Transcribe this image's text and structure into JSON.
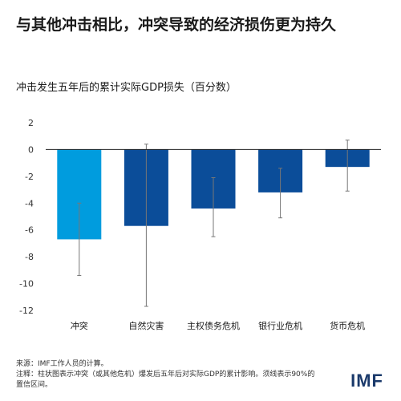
{
  "header": {
    "title": "与其他冲击相比，冲突导致的经济损伤更为持久",
    "subtitle": "冲击发生五年后的累计实际GDP损失（百分数）"
  },
  "footer": {
    "source": "来源：IMF工作人员的计算。",
    "note_line1": "注释：柱状图表示冲突（或其他危机）爆发后五年后对实际GDP的累计影响。须线表示90%的",
    "note_line2": "置信区间。",
    "logo": "IMF"
  },
  "colors": {
    "highlight_bar": "#009cde",
    "bar": "#0b4d99",
    "whisker": "#777777",
    "zero_line": "#222222",
    "grid": "#d9d9d9"
  },
  "chart_data": {
    "type": "bar",
    "title": "与其他冲击相比，冲突导致的经济损伤更为持久",
    "subtitle": "冲击发生五年后的累计实际GDP损失（百分数）",
    "categories": [
      "冲突",
      "自然灾害",
      "主权债务危机",
      "银行业危机",
      "货币危机"
    ],
    "values": [
      -6.7,
      -5.7,
      -4.4,
      -3.2,
      -1.3
    ],
    "ci_lower": [
      -9.4,
      -11.7,
      -6.5,
      -5.1,
      -3.1
    ],
    "ci_upper": [
      -4.0,
      0.4,
      -2.1,
      -1.4,
      0.7
    ],
    "highlight_index": 0,
    "ylim": [
      -12,
      2
    ],
    "yticks": [
      2,
      0,
      -2,
      -4,
      -6,
      -8,
      -10,
      -12
    ],
    "xlabel": "",
    "ylabel": "",
    "grid": false,
    "legend": "none"
  }
}
